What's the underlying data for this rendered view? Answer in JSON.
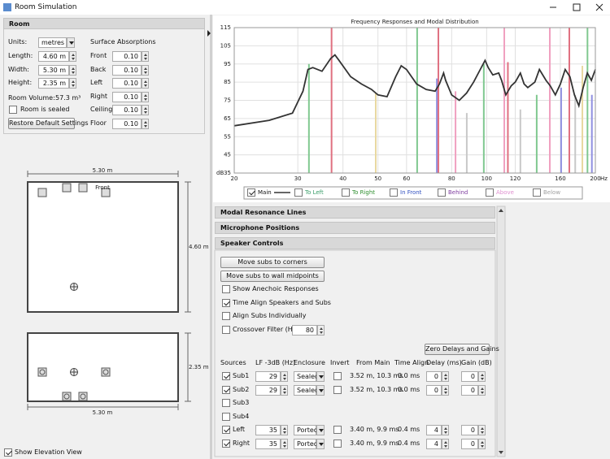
{
  "window": {
    "title": "Room Simulation"
  },
  "room": {
    "title": "Room",
    "units_label": "Units:",
    "units": "metres",
    "length_label": "Length:",
    "length": "4.60 m",
    "width_label": "Width:",
    "width": "5.30 m",
    "height_label": "Height:",
    "height": "2.35 m",
    "volume_label": "Room Volume:",
    "volume": "57.3 m³",
    "sealed_label": "Room is sealed",
    "sealed": false,
    "restore_button": "Restore Default Settings",
    "absorption_title": "Surface Absorptions",
    "absorptions": [
      {
        "label": "Front",
        "value": "0.10"
      },
      {
        "label": "Back",
        "value": "0.10"
      },
      {
        "label": "Left",
        "value": "0.10"
      },
      {
        "label": "Right",
        "value": "0.10"
      },
      {
        "label": "Ceiling",
        "value": "0.10"
      },
      {
        "label": "Floor",
        "value": "0.10"
      }
    ]
  },
  "plan": {
    "width_label": "5.30 m",
    "length_label": "4.60 m",
    "front_label": "Front"
  },
  "elevation": {
    "height_label": "2.35 m",
    "width_label": "5.30 m"
  },
  "show_elevation": {
    "label": "Show Elevation View",
    "checked": true
  },
  "chart_data": {
    "type": "line",
    "title": "Frequency Responses and Modal Distribution",
    "xlabel": "Hz",
    "ylabel": "dB",
    "log_x": true,
    "grid": true,
    "xlim": [
      20,
      200
    ],
    "ylim": [
      35,
      115
    ],
    "xticks": [
      20,
      30,
      40,
      50,
      60,
      80,
      100,
      120,
      160,
      200
    ],
    "yticks": [
      35,
      45,
      55,
      65,
      75,
      85,
      95,
      105,
      115
    ],
    "x": [
      20,
      25,
      29,
      31,
      32,
      33,
      35,
      37,
      38,
      39,
      42,
      45,
      48,
      50,
      53,
      56,
      58,
      60,
      64,
      68,
      72,
      74,
      76,
      77,
      80,
      84,
      88,
      92,
      96,
      99,
      101,
      104,
      108,
      110,
      113,
      117,
      120,
      124,
      127,
      130,
      136,
      140,
      146,
      150,
      155,
      160,
      165,
      170,
      175,
      180,
      185,
      190,
      195,
      200
    ],
    "series": [
      {
        "name": "Main",
        "color": "#333333",
        "checked": true,
        "values": [
          61,
          64,
          68,
          80,
          92,
          93,
          91,
          98,
          100,
          97,
          88,
          84,
          81,
          78,
          77,
          88,
          94,
          92,
          84,
          81,
          80,
          84,
          90,
          86,
          78,
          75,
          79,
          85,
          92,
          97,
          93,
          89,
          90,
          86,
          78,
          83,
          85,
          90,
          84,
          82,
          85,
          92,
          86,
          83,
          78,
          84,
          92,
          88,
          78,
          72,
          82,
          90,
          86,
          92
        ]
      },
      {
        "name": "To Left",
        "color": "#3a9e6a",
        "checked": false
      },
      {
        "name": "To Right",
        "color": "#2f8f2f",
        "checked": false
      },
      {
        "name": "In Front",
        "color": "#3050c0",
        "checked": false
      },
      {
        "name": "Behind",
        "color": "#8040a0",
        "checked": false
      },
      {
        "name": "Above",
        "color": "#e090d0",
        "checked": false
      },
      {
        "name": "Below",
        "color": "#a0a0a0",
        "checked": false
      }
    ],
    "modes": {
      "x": [
        32.2,
        37.2,
        49.3,
        64.2,
        72.8,
        73.5,
        82,
        88.1,
        98.2,
        111.9,
        114.5,
        124,
        137.6,
        149.6,
        160.8,
        169.4,
        175.9,
        184.1,
        190.2,
        195.6
      ],
      "top": [
        95,
        115,
        79,
        115,
        87,
        115,
        80,
        68,
        95,
        115,
        96,
        70,
        78,
        115,
        82,
        115,
        78,
        94,
        115,
        78
      ],
      "colors": [
        "#80c890",
        "#e07080",
        "#e8d8a0",
        "#80c890",
        "#9090e0",
        "#e07080",
        "#f0a0c0",
        "#c8c8c8",
        "#80c890",
        "#f0a0c0",
        "#e07080",
        "#c8c8c8",
        "#80c890",
        "#f0a0c0",
        "#9090e0",
        "#e07080",
        "#c8c8c8",
        "#e8d8a0",
        "#80c890",
        "#9090e0"
      ]
    }
  },
  "panels": [
    {
      "title": "Modal Resonance Lines",
      "expanded": false
    },
    {
      "title": "Microphone Positions",
      "expanded": false
    },
    {
      "title": "Speaker Controls",
      "expanded": true
    }
  ],
  "speaker_controls": {
    "buttons": [
      "Move subs to corners",
      "Move subs to wall midpoints"
    ],
    "options": [
      {
        "label": "Show Anechoic Responses",
        "checked": false
      },
      {
        "label": "Time Align Speakers and Subs",
        "checked": true
      },
      {
        "label": "Align Subs Individually",
        "checked": false
      }
    ],
    "crossover": {
      "label": "Crossover Filter (Hz)",
      "checked": false,
      "value": "80"
    },
    "zero_button": "Zero Delays and Gains",
    "columns": [
      "Sources",
      "LF -3dB (Hz)",
      "Enclosure",
      "Invert",
      "From Main",
      "Time Align",
      "Delay (ms)",
      "Gain (dB)"
    ],
    "rows": [
      {
        "enabled": true,
        "source": "Sub1",
        "lf": "29",
        "enclosure": "Sealed",
        "invert": false,
        "from_main": "3.52 m, 10.3 ms",
        "time_align": "0.0 ms",
        "delay": "0",
        "gain": "0"
      },
      {
        "enabled": true,
        "source": "Sub2",
        "lf": "29",
        "enclosure": "Sealed",
        "invert": false,
        "from_main": "3.52 m, 10.3 ms",
        "time_align": "0.0 ms",
        "delay": "0",
        "gain": "0"
      },
      {
        "enabled": false,
        "source": "Sub3"
      },
      {
        "enabled": false,
        "source": "Sub4"
      },
      {
        "enabled": true,
        "source": "Left",
        "lf": "35",
        "enclosure": "Ported",
        "invert": false,
        "from_main": "3.40 m, 9.9 ms",
        "time_align": "0.4 ms",
        "delay": "4",
        "gain": "0"
      },
      {
        "enabled": true,
        "source": "Right",
        "lf": "35",
        "enclosure": "Ported",
        "invert": false,
        "from_main": "3.40 m, 9.9 ms",
        "time_align": "0.4 ms",
        "delay": "4",
        "gain": "0"
      }
    ]
  }
}
